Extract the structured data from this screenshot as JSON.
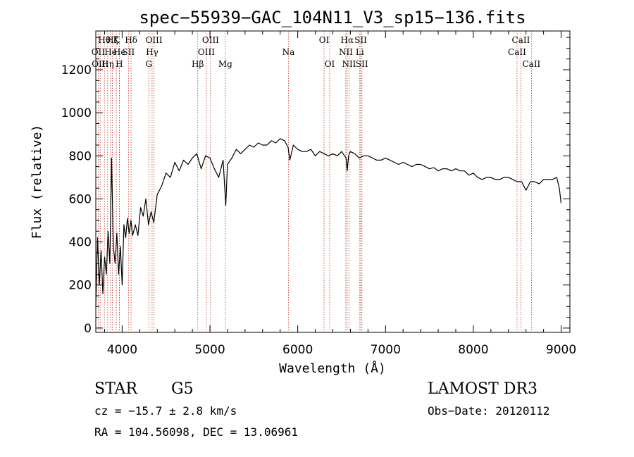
{
  "chart_data": {
    "type": "line",
    "title": "spec−55939−GAC_104N11_V3_sp15−136.fits",
    "xlabel": "Wavelength (Å)",
    "ylabel": "Flux (relative)",
    "xlim": [
      3700,
      9100
    ],
    "ylim": [
      -20,
      1380
    ],
    "xticks": [
      4000,
      5000,
      6000,
      7000,
      8000,
      9000
    ],
    "xtick_labels": [
      "4000",
      "5000",
      "6000",
      "7000",
      "8000",
      "9000"
    ],
    "yticks": [
      0,
      200,
      400,
      600,
      800,
      1000,
      1200
    ],
    "ytick_labels": [
      "0",
      "200",
      "400",
      "600",
      "800",
      "1000",
      "1200"
    ],
    "grid": false,
    "series": [
      {
        "name": "flux",
        "color": "#000000",
        "x": [
          3700,
          3720,
          3740,
          3760,
          3780,
          3800,
          3820,
          3840,
          3860,
          3880,
          3900,
          3920,
          3940,
          3960,
          3980,
          4000,
          4020,
          4040,
          4060,
          4080,
          4100,
          4120,
          4150,
          4180,
          4210,
          4240,
          4270,
          4300,
          4330,
          4360,
          4400,
          4450,
          4500,
          4550,
          4600,
          4650,
          4700,
          4750,
          4800,
          4850,
          4900,
          4950,
          5000,
          5050,
          5100,
          5150,
          5180,
          5200,
          5250,
          5300,
          5350,
          5400,
          5450,
          5500,
          5550,
          5600,
          5650,
          5700,
          5750,
          5800,
          5850,
          5890,
          5910,
          5950,
          6000,
          6050,
          6100,
          6150,
          6200,
          6250,
          6300,
          6350,
          6400,
          6450,
          6500,
          6550,
          6563,
          6580,
          6600,
          6650,
          6700,
          6750,
          6800,
          6850,
          6900,
          6950,
          7000,
          7050,
          7100,
          7150,
          7200,
          7250,
          7300,
          7350,
          7400,
          7450,
          7500,
          7550,
          7600,
          7650,
          7700,
          7750,
          7800,
          7850,
          7900,
          7950,
          8000,
          8050,
          8100,
          8150,
          8200,
          8250,
          8300,
          8350,
          8400,
          8450,
          8500,
          8550,
          8600,
          8650,
          8700,
          8750,
          8800,
          8850,
          8900,
          8950,
          8980,
          9000
        ],
        "y": [
          100,
          420,
          200,
          360,
          160,
          330,
          250,
          450,
          300,
          790,
          380,
          300,
          440,
          250,
          380,
          200,
          480,
          420,
          510,
          440,
          500,
          430,
          480,
          430,
          560,
          520,
          600,
          480,
          540,
          490,
          620,
          660,
          720,
          700,
          770,
          730,
          780,
          760,
          790,
          810,
          740,
          800,
          790,
          740,
          700,
          780,
          570,
          760,
          790,
          830,
          810,
          830,
          850,
          840,
          860,
          850,
          850,
          870,
          860,
          880,
          870,
          840,
          780,
          850,
          830,
          820,
          820,
          830,
          800,
          820,
          810,
          800,
          810,
          800,
          820,
          790,
          730,
          800,
          820,
          810,
          790,
          800,
          800,
          790,
          780,
          780,
          790,
          780,
          770,
          760,
          770,
          760,
          750,
          760,
          760,
          750,
          740,
          745,
          730,
          740,
          740,
          730,
          740,
          730,
          730,
          710,
          720,
          700,
          690,
          700,
          700,
          690,
          690,
          700,
          700,
          690,
          680,
          680,
          640,
          680,
          680,
          670,
          690,
          690,
          690,
          700,
          650,
          580
        ]
      }
    ],
    "lines": [
      {
        "wave": 3727,
        "label": "OII",
        "row": 1
      },
      {
        "wave": 3750,
        "label": "OIII",
        "row": 2
      },
      {
        "wave": 3798,
        "label": "Hθ",
        "row": 0
      },
      {
        "wave": 3835,
        "label": "Hη",
        "row": 2
      },
      {
        "wave": 3869,
        "label": "He",
        "row": 1
      },
      {
        "wave": 3889,
        "label": "Hζ",
        "row": 0
      },
      {
        "wave": 3934,
        "label": "K",
        "row": 0
      },
      {
        "wave": 3968,
        "label": "H",
        "row": 2
      },
      {
        "wave": 3970,
        "label": "He",
        "row": 1
      },
      {
        "wave": 4072,
        "label": "SII",
        "row": 1
      },
      {
        "wave": 4102,
        "label": "Hδ",
        "row": 0
      },
      {
        "wave": 4304,
        "label": "G",
        "row": 2
      },
      {
        "wave": 4341,
        "label": "Hγ",
        "row": 1
      },
      {
        "wave": 4363,
        "label": "OIII",
        "row": 0
      },
      {
        "wave": 4861,
        "label": "Hβ",
        "row": 2
      },
      {
        "wave": 4959,
        "label": "OIII",
        "row": 1
      },
      {
        "wave": 5007,
        "label": "OIII",
        "row": 0
      },
      {
        "wave": 5175,
        "label": "Mg",
        "row": 2
      },
      {
        "wave": 5894,
        "label": "Na",
        "row": 1
      },
      {
        "wave": 6300,
        "label": "OI",
        "row": 0
      },
      {
        "wave": 6364,
        "label": "OI",
        "row": 2
      },
      {
        "wave": 6548,
        "label": "NII",
        "row": 1
      },
      {
        "wave": 6563,
        "label": "Hα",
        "row": 0
      },
      {
        "wave": 6584,
        "label": "NII",
        "row": 2
      },
      {
        "wave": 6707,
        "label": "Li",
        "row": 1
      },
      {
        "wave": 6717,
        "label": "SII",
        "row": 0
      },
      {
        "wave": 6731,
        "label": "SII",
        "row": 2
      },
      {
        "wave": 8498,
        "label": "CaII",
        "row": 1
      },
      {
        "wave": 8542,
        "label": "CaII",
        "row": 0
      },
      {
        "wave": 8662,
        "label": "CaII",
        "row": 2
      }
    ],
    "line_color": "#c0392b",
    "annotations": {
      "class": "STAR",
      "subclass": "G5",
      "survey": "LAMOST DR3",
      "redshift": "cz = −15.7 ± 2.8 km/s",
      "obs_date": "Obs−Date: 20120112",
      "coords": "RA = 104.56098, DEC =  13.06961"
    }
  }
}
